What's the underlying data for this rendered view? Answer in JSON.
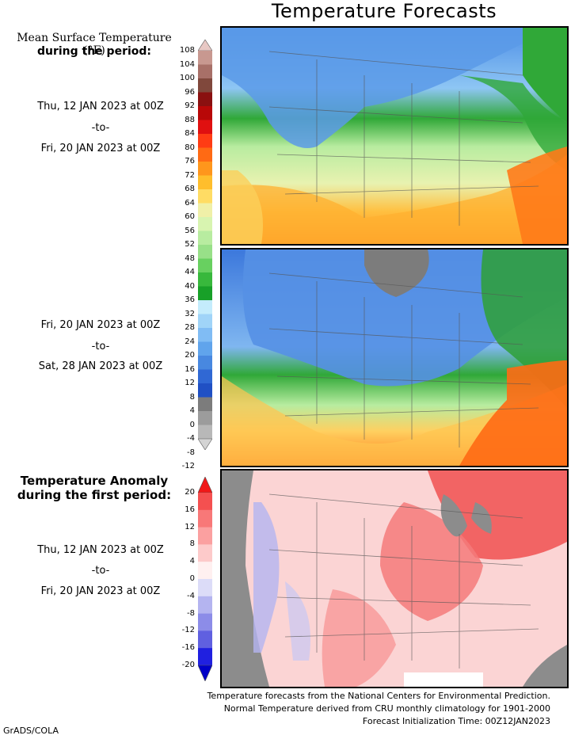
{
  "header": {
    "title": "Temperature Forecasts"
  },
  "panel_top": {
    "label_line1": "Mean Surface Temperature (°F)",
    "label_line2": "during the period:",
    "period_start": "Thu, 12 JAN 2023 at 00Z",
    "period_sep": "-to-",
    "period_end": "Fri, 20 JAN 2023 at 00Z"
  },
  "panel_middle": {
    "period_start": "Fri, 20 JAN 2023 at 00Z",
    "period_sep": "-to-",
    "period_end": "Sat, 28 JAN 2023 at 00Z"
  },
  "panel_bottom": {
    "label_line1": "Temperature Anomaly",
    "label_line2": "during the first period:",
    "period_start": "Thu, 12 JAN 2023 at 00Z",
    "period_sep": "-to-",
    "period_end": "Fri, 20 JAN 2023 at 00Z"
  },
  "temp_scale": {
    "ticks": [
      "108",
      "104",
      "100",
      "96",
      "92",
      "88",
      "84",
      "80",
      "76",
      "72",
      "68",
      "64",
      "60",
      "56",
      "52",
      "48",
      "44",
      "40",
      "36",
      "32",
      "28",
      "24",
      "20",
      "16",
      "12",
      "8",
      "4",
      "0",
      "-4",
      "-8",
      "-12"
    ],
    "colors": [
      "#e8c8c4",
      "#c89890",
      "#a87068",
      "#80483c",
      "#8a1010",
      "#b80808",
      "#e01010",
      "#ff3c14",
      "#ff6a14",
      "#ff961c",
      "#ffbe2c",
      "#ffdc64",
      "#f0f0a8",
      "#d8f4b0",
      "#b8eca0",
      "#98e088",
      "#68d060",
      "#38b83c",
      "#18a028",
      "#c4ecfc",
      "#a0d4f8",
      "#80bcf4",
      "#60a4ec",
      "#4888e0",
      "#3068d4",
      "#2050c4",
      "#7c7c7c",
      "#9c9c9c",
      "#b8b8b8",
      "#d4d4d4"
    ]
  },
  "anom_scale": {
    "ticks": [
      "20",
      "16",
      "12",
      "8",
      "4",
      "0",
      "-4",
      "-8",
      "-12",
      "-16",
      "-20"
    ],
    "colors": [
      "#f01818",
      "#f45050",
      "#f87878",
      "#fba0a0",
      "#fdcaca",
      "#fff0f0",
      "#dcdcf8",
      "#b4b4f0",
      "#8c8ce8",
      "#6060e0",
      "#2020e0",
      "#0000c8"
    ]
  },
  "footer": {
    "line1": "Temperature forecasts from the National Centers for Environmental Prediction.",
    "line2": "Normal Temperature derived from CRU monthly climatology for 1901-2000",
    "line3": "Forecast Initialization Time: 00Z12JAN2023"
  },
  "credit": "GrADS/COLA"
}
